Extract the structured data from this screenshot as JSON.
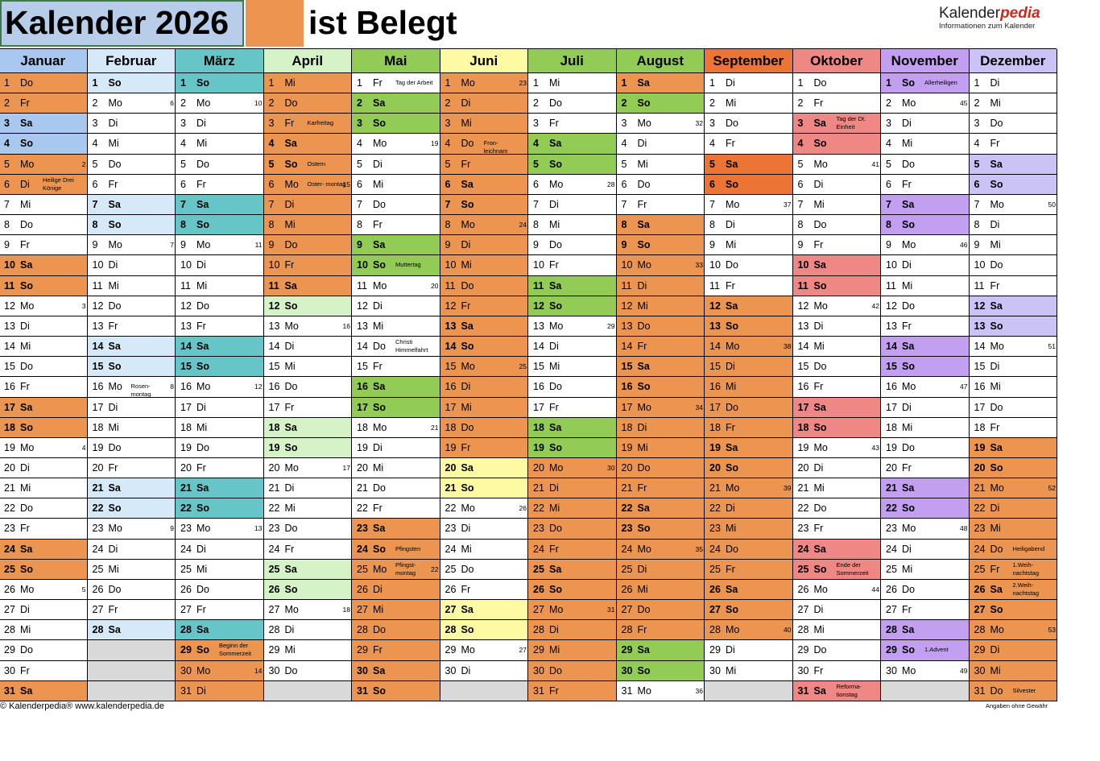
{
  "title": {
    "left": "Kalender 2026",
    "right": "ist Belegt"
  },
  "logo": {
    "main_a": "Kalender",
    "main_b": "pedia",
    "sub": "Informationen zum Kalender"
  },
  "footer": {
    "left": "© Kalenderpedia®   www.kalenderpedia.de",
    "right": "Angaben ohne Gewähr"
  },
  "colors": {
    "orange": "#eb9551",
    "grey": "#d9d9d9"
  },
  "months": [
    {
      "name": "Januar",
      "color": "#a9c8f0",
      "first": 3,
      "days": 31,
      "date1": "Do",
      "bookings": [
        [
          1,
          2
        ],
        [
          5,
          6
        ],
        [
          10,
          11
        ],
        [
          17,
          18
        ],
        [
          24,
          25
        ],
        [
          31,
          31
        ]
      ],
      "green": [
        1,
        2,
        3,
        4,
        5,
        6,
        7,
        10,
        11,
        17,
        18,
        24,
        25,
        31
      ],
      "holidays": {
        "1": "",
        "6": "Heilige Drei Könige"
      },
      "kw": {
        "5": "2",
        "12": "3",
        "19": "4",
        "26": "5"
      }
    },
    {
      "name": "Februar",
      "color": "#d6e9f8",
      "first": 6,
      "days": 28,
      "bookings": [],
      "holidays": {
        "16": "Rosen- montag"
      },
      "kw": {
        "2": "6",
        "9": "7",
        "16": "8",
        "23": "9"
      }
    },
    {
      "name": "März",
      "color": "#66c6c7",
      "first": 6,
      "days": 31,
      "bookings": [
        [
          29,
          31
        ]
      ],
      "holidays": {
        "29": "Beginn der Sommerzeit"
      },
      "kw": {
        "2": "10",
        "9": "11",
        "16": "12",
        "23": "13",
        "30": "14"
      }
    },
    {
      "name": "April",
      "color": "#d6f3c8",
      "first": 2,
      "days": 30,
      "bookings": [
        [
          1,
          11
        ]
      ],
      "holidays": {
        "3": "Karfreitag",
        "5": "Ostern",
        "6": "Oster- montag"
      },
      "kw": {
        "6": "15",
        "13": "16",
        "20": "17",
        "27": "18"
      }
    },
    {
      "name": "Mai",
      "color": "#92cc54",
      "first": 4,
      "days": 31,
      "bookings": [
        [
          23,
          31
        ]
      ],
      "holidays": {
        "1": "Tag der Arbeit",
        "10": "Muttertag",
        "14": "Christi Himmelfahrt",
        "24": "Pfingsten",
        "25": "Pfingst- montag"
      },
      "kw": {
        "4": "19",
        "11": "20",
        "18": "21",
        "25": "22"
      }
    },
    {
      "name": "Juni",
      "color": "#fefaa4",
      "first": 0,
      "days": 30,
      "bookings": [
        [
          1,
          19
        ]
      ],
      "holidays": {
        "4": "Fron- leichnam"
      },
      "kw": {
        "1": "23",
        "8": "24",
        "15": "25",
        "22": "26",
        "29": "27"
      }
    },
    {
      "name": "Juli",
      "color": "#92cc54",
      "first": 2,
      "days": 31,
      "bookings": [
        [
          20,
          31
        ]
      ],
      "holidays": {},
      "kw": {
        "6": "28",
        "13": "29",
        "20": "30",
        "27": "31"
      }
    },
    {
      "name": "August",
      "color": "#92cc54",
      "first": 5,
      "days": 31,
      "bookings": [
        [
          1,
          1
        ],
        [
          8,
          28
        ]
      ],
      "holidays": {},
      "kw": {
        "3": "32",
        "10": "33",
        "17": "34",
        "24": "35",
        "31": "36"
      }
    },
    {
      "name": "September",
      "color": "#ec7535",
      "first": 1,
      "days": 30,
      "bookings": [
        [
          12,
          28
        ]
      ],
      "holidays": {},
      "kw": {
        "7": "37",
        "14": "38",
        "21": "39",
        "28": "40"
      }
    },
    {
      "name": "Oktober",
      "color": "#ef8784",
      "first": 3,
      "days": 31,
      "bookings": [],
      "holidays": {
        "3": "Tag der Dt. Einheit",
        "25": "Ende der Sommerzeit",
        "31": "Reforma- tionstag"
      },
      "kw": {
        "5": "41",
        "12": "42",
        "19": "43",
        "26": "44"
      }
    },
    {
      "name": "November",
      "color": "#c29ff0",
      "first": 6,
      "days": 30,
      "bookings": [],
      "holidays": {
        "1": "Allerheiligen",
        "29": "1.Advent"
      },
      "kw": {
        "2": "45",
        "9": "46",
        "16": "47",
        "23": "48",
        "30": "49"
      }
    },
    {
      "name": "Dezember",
      "color": "#cbc3f6",
      "first": 1,
      "days": 31,
      "bookings": [
        [
          19,
          31
        ]
      ],
      "holidays": {
        "24": "Heiligabend",
        "25": "1.Weih- nachtstag",
        "26": "2.Weih- nachtstag",
        "31": "Silvester"
      },
      "kw": {
        "7": "50",
        "14": "51",
        "21": "52",
        "28": "53"
      }
    }
  ],
  "weekdays": [
    "Mo",
    "Di",
    "Mi",
    "Do",
    "Fr",
    "Sa",
    "So"
  ]
}
